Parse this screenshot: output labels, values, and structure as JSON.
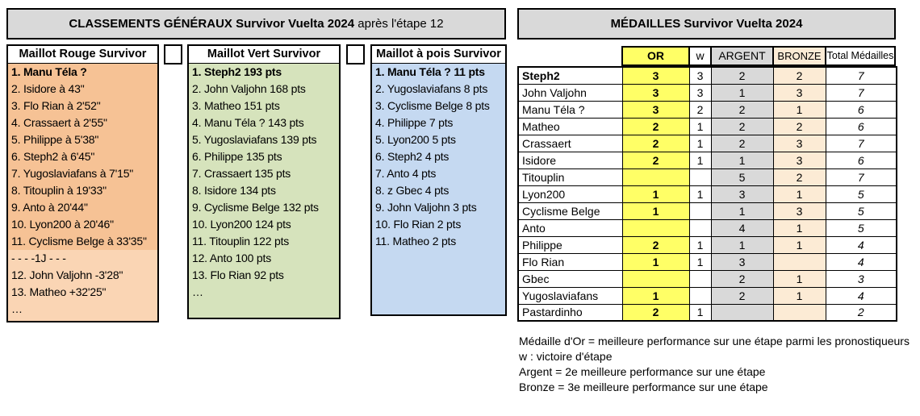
{
  "left_panel": {
    "title_bold": "CLASSEMENTS GÉNÉRAUX Survivor Vuelta 2024",
    "title_suffix": " après l'étape 12",
    "columns": [
      {
        "header": "Maillot Rouge Survivor",
        "rows": [
          {
            "text": "1. Manu Téla ?",
            "bold": true,
            "shade": "dark"
          },
          {
            "text": "2. Isidore à 43\"",
            "shade": "dark"
          },
          {
            "text": "3. Flo Rian à 2'52\"",
            "shade": "dark"
          },
          {
            "text": "4. Crassaert à 2'55\"",
            "shade": "dark"
          },
          {
            "text": "5. Philippe à 5'38\"",
            "shade": "dark"
          },
          {
            "text": "6. Steph2 à 6'45\"",
            "shade": "dark"
          },
          {
            "text": "7. Yugoslaviafans à 7'15\"",
            "shade": "dark"
          },
          {
            "text": "8. Titouplin à 19'33\"",
            "shade": "dark"
          },
          {
            "text": "9. Anto à 20'44\"",
            "shade": "dark"
          },
          {
            "text": "10. Lyon200 à 20'46\"",
            "shade": "dark"
          },
          {
            "text": "11. Cyclisme Belge à 33'35\"",
            "shade": "dark"
          },
          {
            "text": "- - - -1J - - -",
            "shade": "light"
          },
          {
            "text": "12. John Valjohn -3'28\"",
            "shade": "light"
          },
          {
            "text": "13. Matheo +32'25\"",
            "shade": "light"
          },
          {
            "text": "…",
            "shade": "light"
          }
        ]
      },
      {
        "header": "Maillot Vert Survivor",
        "rows": [
          {
            "text": "1. Steph2 193 pts",
            "bold": true
          },
          {
            "text": "2. John Valjohn 168 pts"
          },
          {
            "text": "3. Matheo 151 pts"
          },
          {
            "text": "4. Manu Téla ? 143 pts"
          },
          {
            "text": "5. Yugoslaviafans 139 pts"
          },
          {
            "text": "6. Philippe 135 pts"
          },
          {
            "text": "7. Crassaert 135 pts"
          },
          {
            "text": "8. Isidore 134 pts"
          },
          {
            "text": "9. Cyclisme Belge 132 pts"
          },
          {
            "text": "10. Lyon200 124 pts"
          },
          {
            "text": "11. Titouplin 122 pts"
          },
          {
            "text": "12. Anto 100 pts"
          },
          {
            "text": "13. Flo Rian 92 pts"
          },
          {
            "text": "…"
          }
        ]
      },
      {
        "header": "Maillot à pois Survivor",
        "rows": [
          {
            "text": "1. Manu Téla ? 11 pts",
            "bold": true
          },
          {
            "text": "2. Yugoslaviafans 8 pts"
          },
          {
            "text": "3. Cyclisme Belge 8 pts"
          },
          {
            "text": "4. Philippe 7 pts"
          },
          {
            "text": "5. Lyon200 5 pts"
          },
          {
            "text": "6. Steph2 4 pts"
          },
          {
            "text": "7. Anto 4 pts"
          },
          {
            "text": "8. z Gbec 4 pts"
          },
          {
            "text": "9. John Valjohn 3 pts"
          },
          {
            "text": "10. Flo Rian 2 pts"
          },
          {
            "text": "11. Matheo 2 pts"
          }
        ]
      }
    ]
  },
  "medals": {
    "title": "MÉDAILLES Survivor Vuelta 2024",
    "headers": {
      "or": "OR",
      "w": "w",
      "argent": "ARGENT",
      "bronze": "BRONZE",
      "total": "Total Médailles"
    },
    "rows": [
      {
        "name": "Steph2",
        "bold": true,
        "or": "3",
        "w": "3",
        "argent": "2",
        "bronze": "2",
        "total": "7"
      },
      {
        "name": "John Valjohn",
        "or": "3",
        "w": "3",
        "argent": "1",
        "bronze": "3",
        "total": "7"
      },
      {
        "name": "Manu Téla ?",
        "or": "3",
        "w": "2",
        "argent": "2",
        "bronze": "1",
        "total": "6"
      },
      {
        "name": "Matheo",
        "or": "2",
        "w": "1",
        "argent": "2",
        "bronze": "2",
        "total": "6"
      },
      {
        "name": "Crassaert",
        "or": "2",
        "w": "1",
        "argent": "2",
        "bronze": "3",
        "total": "7"
      },
      {
        "name": "Isidore",
        "or": "2",
        "w": "1",
        "argent": "1",
        "bronze": "3",
        "total": "6"
      },
      {
        "name": "Titouplin",
        "or": "",
        "w": "",
        "argent": "5",
        "bronze": "2",
        "total": "7"
      },
      {
        "name": "Lyon200",
        "or": "1",
        "w": "1",
        "argent": "3",
        "bronze": "1",
        "total": "5"
      },
      {
        "name": "Cyclisme Belge",
        "or": "1",
        "w": "",
        "argent": "1",
        "bronze": "3",
        "total": "5"
      },
      {
        "name": "Anto",
        "or": "",
        "w": "",
        "argent": "4",
        "bronze": "1",
        "total": "5"
      },
      {
        "name": "Philippe",
        "or": "2",
        "w": "1",
        "argent": "1",
        "bronze": "1",
        "total": "4"
      },
      {
        "name": "Flo Rian",
        "or": "1",
        "w": "1",
        "argent": "3",
        "bronze": "",
        "total": "4"
      },
      {
        "name": "Gbec",
        "or": "",
        "w": "",
        "argent": "2",
        "bronze": "1",
        "total": "3"
      },
      {
        "name": "Yugoslaviafans",
        "or": "1",
        "w": "",
        "argent": "2",
        "bronze": "1",
        "total": "4"
      },
      {
        "name": "Pastardinho",
        "or": "2",
        "w": "1",
        "argent": "",
        "bronze": "",
        "total": "2"
      }
    ]
  },
  "footnotes": [
    "Médaille d'Or = meilleure performance sur une étape parmi les pronostiqueurs",
    "w : victoire d'étape",
    "Argent = 2e meilleure performance sur une étape",
    "Bronze = 3e meilleure performance sur une étape"
  ],
  "colors": {
    "title_gray": "#D9D9D9",
    "rouge_dark": "#F6C295",
    "rouge_light": "#FAD5B4",
    "vert": "#D6E3BC",
    "pois": "#C5D9F1",
    "or_yellow": "#FFFF66",
    "argent_gray": "#D9D9D9",
    "bronze_cream": "#FCEBD5"
  }
}
